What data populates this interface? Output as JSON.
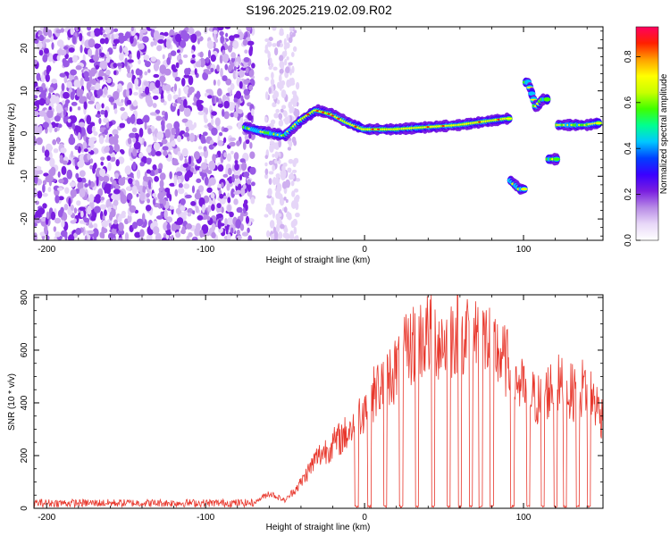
{
  "title": "S196.2025.219.02.09.R02",
  "chart_data": [
    {
      "type": "heatmap",
      "xlabel": "Height of straight line (km)",
      "ylabel": "Frequency (Hz)",
      "xlim": [
        -208,
        150
      ],
      "ylim": [
        -25,
        25
      ],
      "x_ticks": [
        -200,
        -100,
        0,
        100
      ],
      "y_ticks": [
        -20,
        -10,
        0,
        10,
        20
      ],
      "colorbar": {
        "label": "Normalized spectral amplitude",
        "range": [
          0,
          0.93
        ],
        "ticks": [
          0.0,
          0.2,
          0.4,
          0.6,
          0.8
        ],
        "colormap": [
          "#ffffff",
          "#e8d8f8",
          "#b78ae6",
          "#7a1ee0",
          "#3a00ff",
          "#0040ff",
          "#00c8ff",
          "#00ff90",
          "#40ff00",
          "#c8ff00",
          "#ffff00",
          "#ffa000",
          "#ff2000",
          "#ff0060"
        ]
      },
      "description_track": [
        {
          "x": -75,
          "f": 1.5
        },
        {
          "x": -65,
          "f": 0.5
        },
        {
          "x": -50,
          "f": -0.5
        },
        {
          "x": -40,
          "f": 3
        },
        {
          "x": -30,
          "f": 5.5
        },
        {
          "x": -20,
          "f": 4.5
        },
        {
          "x": -10,
          "f": 2.5
        },
        {
          "x": 0,
          "f": 1
        },
        {
          "x": 20,
          "f": 1
        },
        {
          "x": 40,
          "f": 1.5
        },
        {
          "x": 60,
          "f": 2
        },
        {
          "x": 80,
          "f": 3
        },
        {
          "x": 90,
          "f": 3.5
        },
        {
          "x": 92,
          "f": -11
        },
        {
          "x": 98,
          "f": -13
        },
        {
          "x": 103,
          "f": 12
        },
        {
          "x": 108,
          "f": 6
        },
        {
          "x": 112,
          "f": 8
        },
        {
          "x": 118,
          "f": -6
        },
        {
          "x": 125,
          "f": 2
        },
        {
          "x": 140,
          "f": 2
        },
        {
          "x": 148,
          "f": 2.5
        }
      ]
    },
    {
      "type": "line",
      "xlabel": "Height of straight line (km)",
      "ylabel": "SNR (10 * v/v)",
      "xlim": [
        -208,
        150
      ],
      "ylim": [
        0,
        810
      ],
      "x_ticks": [
        -200,
        -100,
        0,
        100
      ],
      "y_ticks": [
        0,
        200,
        400,
        600,
        800
      ],
      "series_color": "#e8372c",
      "envelope": [
        {
          "x": -208,
          "y": 20
        },
        {
          "x": -70,
          "y": 20
        },
        {
          "x": -60,
          "y": 60
        },
        {
          "x": -50,
          "y": 30
        },
        {
          "x": -40,
          "y": 100
        },
        {
          "x": -30,
          "y": 200
        },
        {
          "x": -20,
          "y": 250
        },
        {
          "x": -10,
          "y": 300
        },
        {
          "x": 0,
          "y": 400
        },
        {
          "x": 10,
          "y": 480
        },
        {
          "x": 20,
          "y": 550
        },
        {
          "x": 30,
          "y": 640
        },
        {
          "x": 40,
          "y": 680
        },
        {
          "x": 50,
          "y": 650
        },
        {
          "x": 60,
          "y": 700
        },
        {
          "x": 70,
          "y": 690
        },
        {
          "x": 80,
          "y": 640
        },
        {
          "x": 90,
          "y": 560
        },
        {
          "x": 100,
          "y": 460
        },
        {
          "x": 110,
          "y": 420
        },
        {
          "x": 120,
          "y": 490
        },
        {
          "x": 130,
          "y": 450
        },
        {
          "x": 140,
          "y": 480
        },
        {
          "x": 150,
          "y": 350
        }
      ],
      "dropouts_x": [
        -5,
        3,
        13,
        23,
        33,
        43,
        53,
        60,
        67,
        73,
        80,
        93,
        103,
        112,
        120,
        126,
        134,
        141
      ]
    }
  ]
}
